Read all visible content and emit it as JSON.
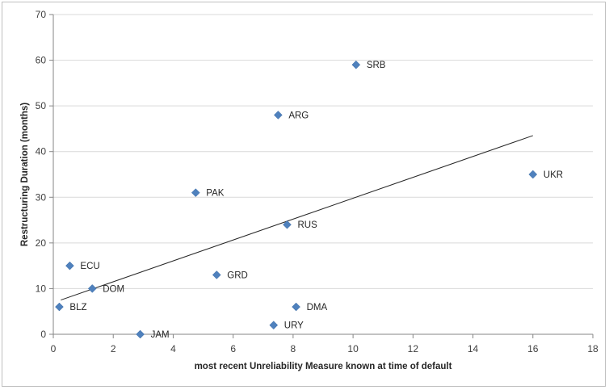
{
  "chart_data": {
    "type": "scatter",
    "xlabel": "most recent Unreliability  Measure known at time of default",
    "ylabel": "Restructuring Duration (months)",
    "xlim": [
      0,
      18
    ],
    "ylim": [
      0,
      70
    ],
    "x_ticks": [
      0,
      2,
      4,
      6,
      8,
      10,
      12,
      14,
      16,
      18
    ],
    "y_ticks": [
      0,
      10,
      20,
      30,
      40,
      50,
      60,
      70
    ],
    "grid": "horizontal",
    "legend": "none",
    "marker": "diamond",
    "marker_color": "#4f81bd",
    "trendline_color": "#262626",
    "points": [
      {
        "label": "SRB",
        "x": 10.1,
        "y": 59
      },
      {
        "label": "ARG",
        "x": 7.5,
        "y": 48
      },
      {
        "label": "UKR",
        "x": 16.0,
        "y": 35
      },
      {
        "label": "PAK",
        "x": 4.75,
        "y": 31
      },
      {
        "label": "RUS",
        "x": 7.8,
        "y": 24
      },
      {
        "label": "ECU",
        "x": 0.55,
        "y": 15
      },
      {
        "label": "GRD",
        "x": 5.45,
        "y": 13
      },
      {
        "label": "DOM",
        "x": 1.3,
        "y": 10
      },
      {
        "label": "BLZ",
        "x": 0.2,
        "y": 6
      },
      {
        "label": "DMA",
        "x": 8.1,
        "y": 6
      },
      {
        "label": "URY",
        "x": 7.35,
        "y": 2
      },
      {
        "label": "JAM",
        "x": 2.9,
        "y": 0
      }
    ],
    "trendline": {
      "x": [
        0.25,
        16.0
      ],
      "y": [
        7.5,
        43.5
      ]
    }
  }
}
